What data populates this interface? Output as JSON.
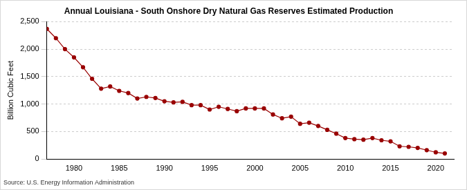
{
  "chart_data": {
    "type": "line",
    "title": "Annual Louisiana - South Onshore Dry Natural Gas Reserves Estimated Production",
    "y_label": "Billion Cubic Feet",
    "source": "Source: U.S. Energy Information Administration",
    "x": [
      1977,
      1978,
      1979,
      1980,
      1981,
      1982,
      1983,
      1984,
      1985,
      1986,
      1987,
      1988,
      1989,
      1990,
      1991,
      1992,
      1993,
      1994,
      1995,
      1996,
      1997,
      1998,
      1999,
      2000,
      2001,
      2002,
      2003,
      2004,
      2005,
      2006,
      2007,
      2008,
      2009,
      2010,
      2011,
      2012,
      2013,
      2014,
      2015,
      2016,
      2017,
      2018,
      2019,
      2020,
      2021
    ],
    "series": [
      {
        "name": "Louisiana - South Onshore Dry Natural Gas Reserves Estimated Production",
        "color": "#990000",
        "marker": "circle",
        "line_style": "solid",
        "values": [
          2370,
          2200,
          2000,
          1850,
          1670,
          1460,
          1280,
          1320,
          1240,
          1200,
          1100,
          1130,
          1110,
          1050,
          1030,
          1040,
          980,
          980,
          900,
          950,
          910,
          870,
          920,
          920,
          920,
          810,
          740,
          770,
          640,
          660,
          600,
          530,
          460,
          380,
          360,
          350,
          380,
          340,
          320,
          230,
          220,
          200,
          160,
          120,
          100
        ]
      }
    ],
    "xlim": [
      1977,
      2022
    ],
    "xticks": [
      1980,
      1985,
      1990,
      1995,
      2000,
      2005,
      2010,
      2015,
      2020
    ],
    "ylim": [
      0,
      2500
    ],
    "yticks": [
      0,
      500,
      {
        "value": 1000,
        "label": "1,000"
      },
      {
        "value": 1500,
        "label": "1,500"
      },
      {
        "value": 2000,
        "label": "2,000"
      },
      {
        "value": 2500,
        "label": "2,500"
      }
    ],
    "grid": "y"
  }
}
